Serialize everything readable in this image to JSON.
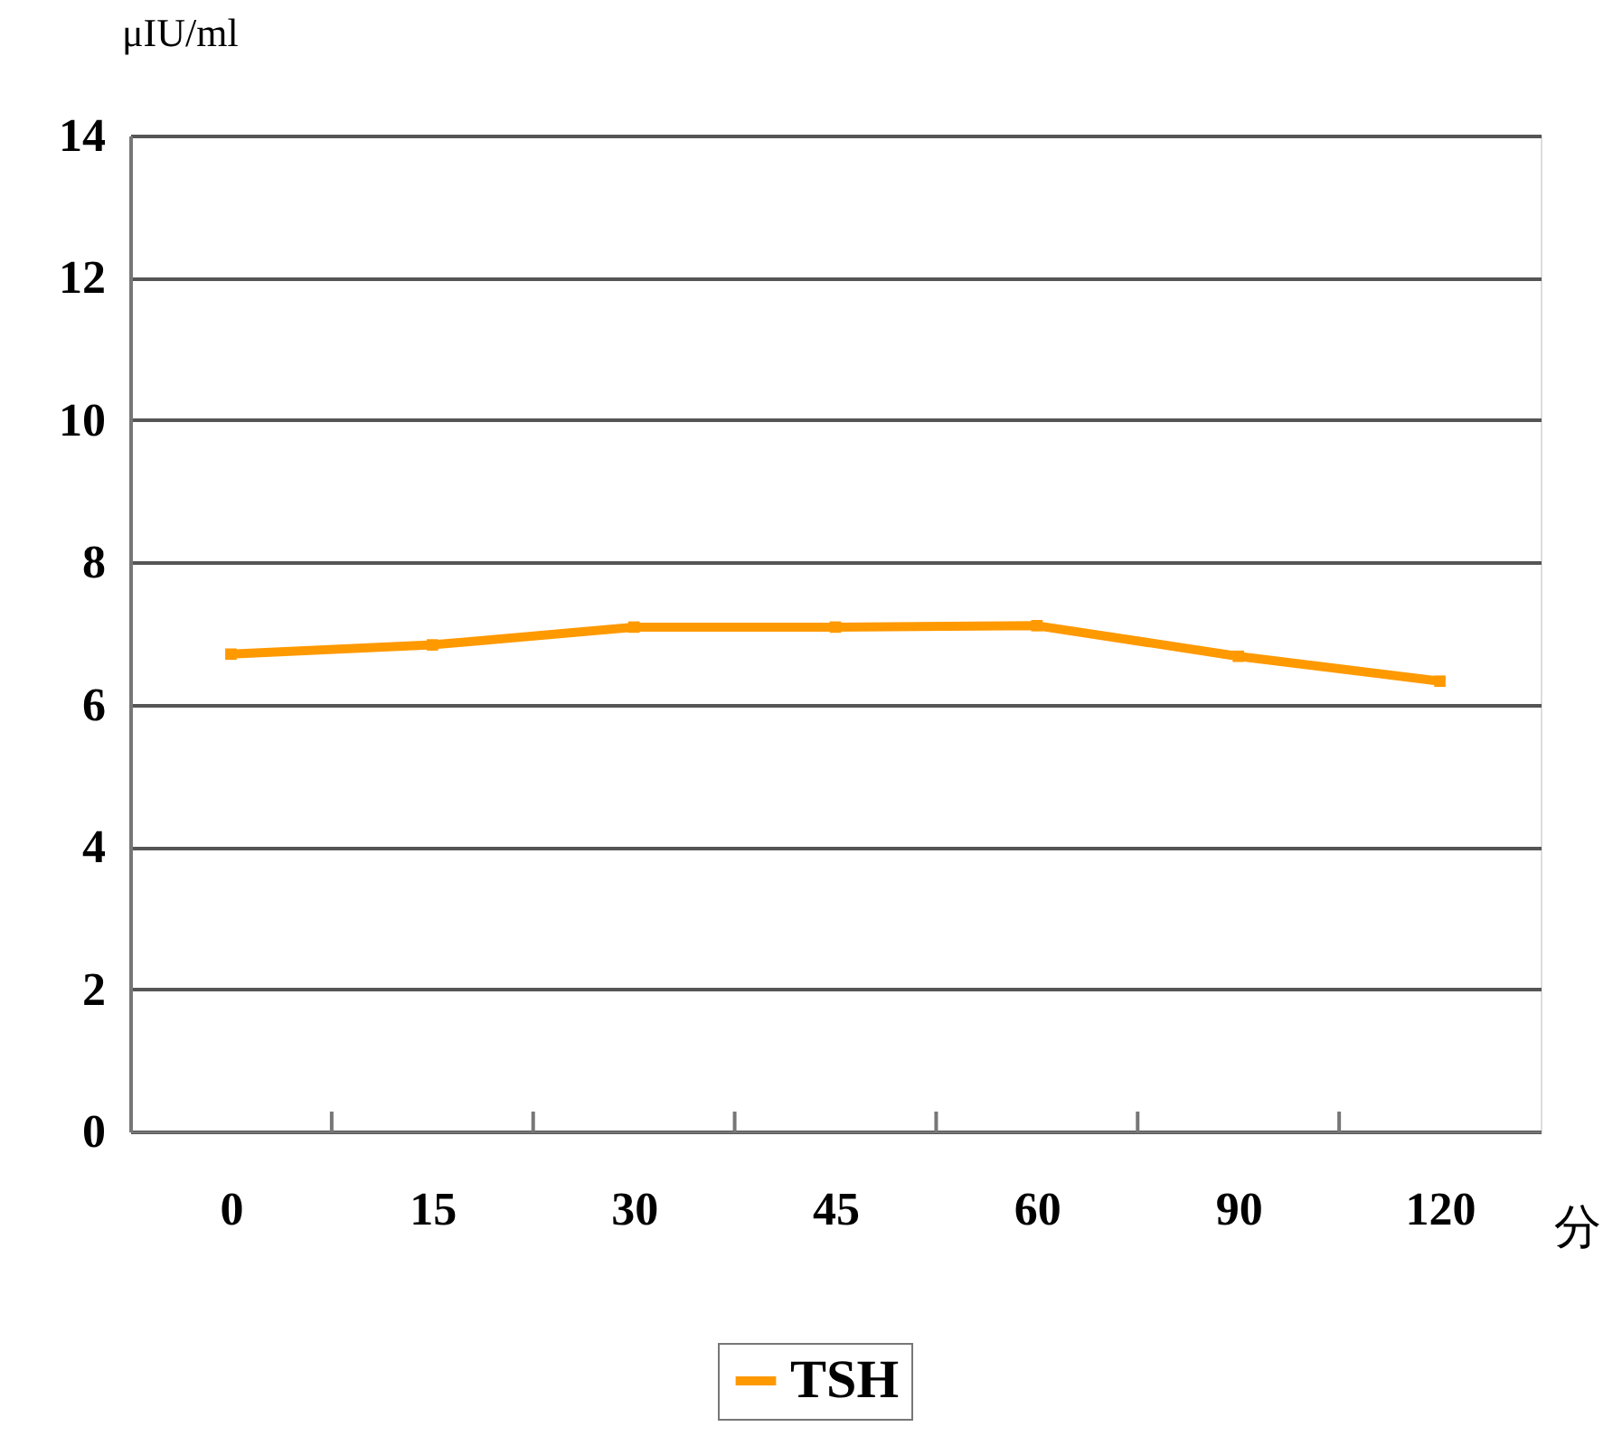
{
  "chart_data": {
    "type": "line",
    "xlabel": "分",
    "ylabel": "μIU/ml",
    "categories": [
      "0",
      "15",
      "30",
      "45",
      "60",
      "90",
      "120"
    ],
    "series": [
      {
        "name": "TSH",
        "color": "#ff9900",
        "values": [
          6.71,
          6.84,
          7.09,
          7.09,
          7.11,
          6.68,
          6.33
        ]
      }
    ],
    "ylim": [
      0,
      14
    ],
    "yticks": [
      0,
      2,
      4,
      6,
      8,
      10,
      12,
      14
    ],
    "grid": "y",
    "legend": "bottom",
    "marker": "square",
    "line_style": "solid"
  }
}
